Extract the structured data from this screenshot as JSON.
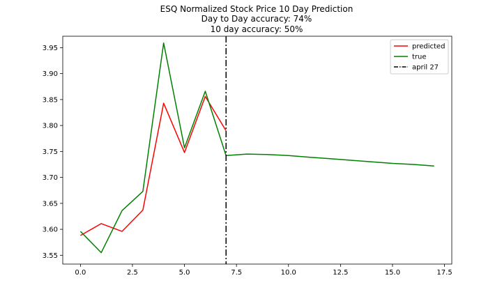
{
  "chart_data": {
    "type": "line",
    "title": [
      "ESQ Normalized Stock Price 10 Day Prediction",
      "Day to Day accuracy: 74%",
      "10 day accuracy: 50%"
    ],
    "xlabel": "",
    "ylabel": "",
    "xlim": [
      -0.85,
      17.85
    ],
    "ylim": [
      3.533,
      3.972
    ],
    "xticks": [
      0.0,
      2.5,
      5.0,
      7.5,
      10.0,
      12.5,
      15.0,
      17.5
    ],
    "xtick_labels": [
      "0.0",
      "2.5",
      "5.0",
      "7.5",
      "10.0",
      "12.5",
      "15.0",
      "17.5"
    ],
    "yticks": [
      3.55,
      3.6,
      3.65,
      3.7,
      3.75,
      3.8,
      3.85,
      3.9,
      3.95
    ],
    "ytick_labels": [
      "3.55",
      "3.60",
      "3.65",
      "3.70",
      "3.75",
      "3.80",
      "3.85",
      "3.90",
      "3.95"
    ],
    "grid": false,
    "legend_position": "top-right",
    "series": [
      {
        "name": "predicted",
        "color": "#ff0000",
        "x": [
          0,
          1,
          2,
          3,
          4,
          5,
          6,
          7
        ],
        "y": [
          3.588,
          3.611,
          3.596,
          3.637,
          3.843,
          3.748,
          3.856,
          3.79
        ]
      },
      {
        "name": "true",
        "color": "#008000",
        "x": [
          0,
          1,
          2,
          3,
          4,
          5,
          6,
          7,
          8,
          9,
          10,
          11,
          12,
          13,
          14,
          15,
          16,
          17
        ],
        "y": [
          3.596,
          3.555,
          3.636,
          3.673,
          3.959,
          3.757,
          3.866,
          3.742,
          3.745,
          3.744,
          3.742,
          3.739,
          3.736,
          3.733,
          3.73,
          3.727,
          3.725,
          3.722
        ]
      }
    ],
    "vline": {
      "name": "april 27",
      "x": 7,
      "color": "#000000",
      "style": "dashdot"
    }
  }
}
